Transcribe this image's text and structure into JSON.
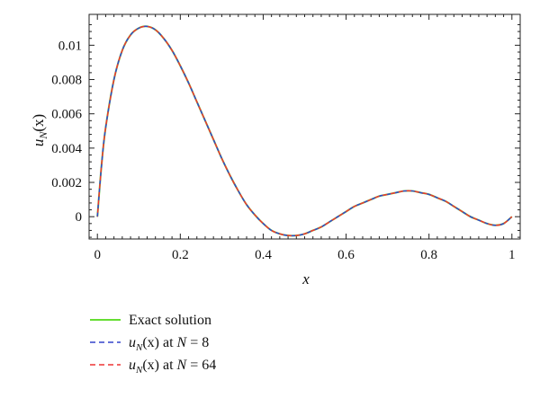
{
  "chart_data": {
    "type": "line",
    "xlabel": "x",
    "ylabel": "u_N(x)",
    "ylabel_parts": {
      "base": "u",
      "sub": "N",
      "arg": "(x)"
    },
    "xlim": [
      -0.02,
      1.02
    ],
    "ylim": [
      -0.0013,
      0.0118
    ],
    "x_ticks": [
      0,
      0.2,
      0.4,
      0.6,
      0.8,
      1
    ],
    "x_tick_labels": [
      "0",
      "0.2",
      "0.4",
      "0.6",
      "0.8",
      "1"
    ],
    "y_ticks": [
      0,
      0.002,
      0.004,
      0.006,
      0.008,
      0.01
    ],
    "y_tick_labels": [
      "0",
      "0.002",
      "0.004",
      "0.006",
      "0.008",
      "0.01"
    ],
    "grid": false,
    "legend_position": "bottom-left (below plot)",
    "x": [
      0,
      0.01,
      0.02,
      0.04,
      0.06,
      0.08,
      0.1,
      0.12,
      0.14,
      0.16,
      0.18,
      0.2,
      0.22,
      0.24,
      0.26,
      0.28,
      0.3,
      0.32,
      0.34,
      0.36,
      0.38,
      0.4,
      0.42,
      0.44,
      0.46,
      0.48,
      0.5,
      0.52,
      0.54,
      0.56,
      0.58,
      0.6,
      0.62,
      0.64,
      0.66,
      0.68,
      0.7,
      0.72,
      0.74,
      0.76,
      0.78,
      0.8,
      0.82,
      0.84,
      0.86,
      0.88,
      0.9,
      0.92,
      0.94,
      0.96,
      0.98,
      1.0
    ],
    "series": [
      {
        "name": "Exact solution",
        "legend_label": {
          "text": "Exact solution"
        },
        "color": "#66dd33",
        "dash": "solid",
        "values": [
          0,
          0.003,
          0.0052,
          0.008,
          0.0097,
          0.0106,
          0.011,
          0.0111,
          0.0109,
          0.0104,
          0.0097,
          0.0088,
          0.0078,
          0.0067,
          0.0056,
          0.0045,
          0.0034,
          0.0024,
          0.0015,
          0.0007,
          0.0001,
          -0.0004,
          -0.0008,
          -0.001,
          -0.0011,
          -0.0011,
          -0.001,
          -0.0008,
          -0.0006,
          -0.0003,
          0.0,
          0.0003,
          0.0006,
          0.0008,
          0.001,
          0.0012,
          0.0013,
          0.0014,
          0.0015,
          0.0015,
          0.0014,
          0.0013,
          0.0011,
          0.0009,
          0.0006,
          0.0003,
          0.0,
          -0.0002,
          -0.0004,
          -0.0005,
          -0.0004,
          0.0
        ]
      },
      {
        "name": "u_N(x) at N = 8",
        "legend_label": {
          "base": "u",
          "sub": "N",
          "arg": "(x)",
          "mid": " at ",
          "var": "N",
          "rest": " = 8"
        },
        "color": "#3344cc",
        "dash": "dashed",
        "values": [
          0,
          0.003,
          0.0052,
          0.008,
          0.0097,
          0.0106,
          0.011,
          0.0111,
          0.0109,
          0.0104,
          0.0097,
          0.0088,
          0.0078,
          0.0067,
          0.0056,
          0.0045,
          0.0034,
          0.0024,
          0.0015,
          0.0007,
          0.0001,
          -0.0004,
          -0.0008,
          -0.001,
          -0.0011,
          -0.0011,
          -0.001,
          -0.0008,
          -0.0006,
          -0.0003,
          0.0,
          0.0003,
          0.0006,
          0.0008,
          0.001,
          0.0012,
          0.0013,
          0.0014,
          0.0015,
          0.0015,
          0.0014,
          0.0013,
          0.0011,
          0.0009,
          0.0006,
          0.0003,
          0.0,
          -0.0002,
          -0.0004,
          -0.0005,
          -0.0004,
          0.0
        ]
      },
      {
        "name": "u_N(x) at N = 64",
        "legend_label": {
          "base": "u",
          "sub": "N",
          "arg": "(x)",
          "mid": " at ",
          "var": "N",
          "rest": " = 64"
        },
        "color": "#ee3333",
        "dash": "dashed",
        "values": [
          0,
          0.003,
          0.0052,
          0.008,
          0.0097,
          0.0106,
          0.011,
          0.0111,
          0.0109,
          0.0104,
          0.0097,
          0.0088,
          0.0078,
          0.0067,
          0.0056,
          0.0045,
          0.0034,
          0.0024,
          0.0015,
          0.0007,
          0.0001,
          -0.0004,
          -0.0008,
          -0.001,
          -0.0011,
          -0.0011,
          -0.001,
          -0.0008,
          -0.0006,
          -0.0003,
          0.0,
          0.0003,
          0.0006,
          0.0008,
          0.001,
          0.0012,
          0.0013,
          0.0014,
          0.0015,
          0.0015,
          0.0014,
          0.0013,
          0.0011,
          0.0009,
          0.0006,
          0.0003,
          0.0,
          -0.0002,
          -0.0004,
          -0.0005,
          -0.0004,
          0.0
        ]
      }
    ]
  }
}
